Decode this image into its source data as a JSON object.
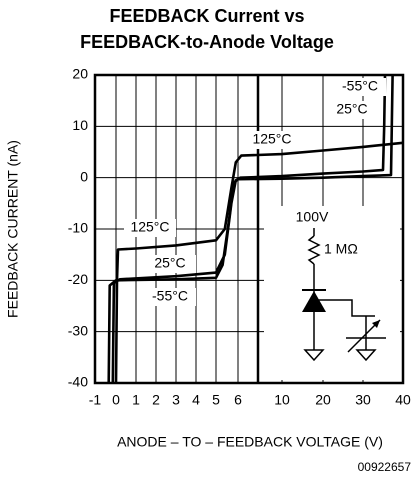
{
  "chart_data": {
    "type": "line",
    "title": [
      "FEEDBACK Current vs",
      "FEEDBACK-to-Anode Voltage"
    ],
    "xlabel": "ANODE – TO – FEEDBACK VOLTAGE (V)",
    "ylabel": "FEEDBACK CURRENT (nA)",
    "footnote": "00922657",
    "xlim": [
      -1,
      40
    ],
    "ylim": [
      -40,
      20
    ],
    "xticks": [
      -1,
      0,
      1,
      2,
      3,
      4,
      5,
      6,
      10,
      20,
      30,
      40
    ],
    "yticks": [
      -40,
      -30,
      -20,
      -10,
      0,
      10,
      20
    ],
    "grid": true,
    "series": [
      {
        "name": "125°C",
        "color": "#000000",
        "x": [
          0,
          0.05,
          0.1,
          1,
          3,
          5,
          5.4,
          5.7,
          5.9,
          6.3,
          10,
          20,
          30,
          40
        ],
        "values": [
          -40,
          -20,
          -14,
          -13.8,
          -13.2,
          -12.2,
          -10,
          -2,
          3,
          4.3,
          4.6,
          5.3,
          6,
          6.8
        ]
      },
      {
        "name": "25°C",
        "color": "#000000",
        "x": [
          -0.15,
          -0.1,
          0.2,
          3,
          5,
          5.4,
          5.7,
          5.9,
          6.2,
          10,
          20,
          30,
          35,
          35.3,
          35.5
        ],
        "values": [
          -40,
          -20.5,
          -19.8,
          -19.2,
          -18.5,
          -15,
          -5,
          -0.5,
          0,
          0.3,
          0.8,
          1.2,
          1.5,
          10,
          20
        ]
      },
      {
        "name": "-55°C",
        "color": "#000000",
        "x": [
          -0.35,
          -0.3,
          0,
          3,
          5,
          5.3,
          5.6,
          5.8,
          6,
          10,
          20,
          30,
          37,
          37.2,
          37.4
        ],
        "values": [
          -40,
          -21,
          -20,
          -19.8,
          -19.5,
          -17,
          -8,
          -1,
          -0.3,
          -0.2,
          0,
          0.3,
          0.5,
          10,
          20
        ]
      }
    ],
    "annotations": [
      "-55°C",
      "25°C",
      "125°C"
    ],
    "inset": {
      "supply": "100V",
      "resistor": "1 MΩ"
    }
  }
}
